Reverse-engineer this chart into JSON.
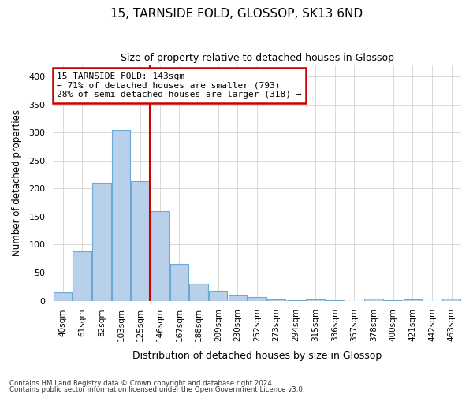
{
  "title1": "15, TARNSIDE FOLD, GLOSSOP, SK13 6ND",
  "title2": "Size of property relative to detached houses in Glossop",
  "xlabel": "Distribution of detached houses by size in Glossop",
  "ylabel": "Number of detached properties",
  "footer1": "Contains HM Land Registry data © Crown copyright and database right 2024.",
  "footer2": "Contains public sector information licensed under the Open Government Licence v3.0.",
  "bar_labels": [
    "40sqm",
    "61sqm",
    "82sqm",
    "103sqm",
    "125sqm",
    "146sqm",
    "167sqm",
    "188sqm",
    "209sqm",
    "230sqm",
    "252sqm",
    "273sqm",
    "294sqm",
    "315sqm",
    "336sqm",
    "357sqm",
    "378sqm",
    "400sqm",
    "421sqm",
    "442sqm",
    "463sqm"
  ],
  "bar_values": [
    15,
    88,
    210,
    305,
    213,
    160,
    65,
    30,
    18,
    10,
    6,
    2,
    1,
    2,
    1,
    0,
    3,
    1,
    2,
    0,
    3
  ],
  "bar_color": "#b8d0ea",
  "bar_edge_color": "#6aaad4",
  "grid_color": "#cccccc",
  "background_color": "#ffffff",
  "vline_x": 5,
  "vline_color": "#cc0000",
  "annotation_line1": "15 TARNSIDE FOLD: 143sqm",
  "annotation_line2": "← 71% of detached houses are smaller (793)",
  "annotation_line3": "28% of semi-detached houses are larger (318) →",
  "annotation_box_color": "#ffffff",
  "annotation_border_color": "#cc0000",
  "ylim": [
    0,
    420
  ],
  "yticks": [
    0,
    50,
    100,
    150,
    200,
    250,
    300,
    350,
    400
  ]
}
